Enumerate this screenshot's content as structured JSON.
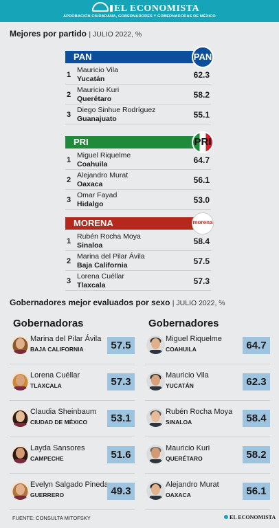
{
  "header": {
    "brand": "EL ECONOMISTA",
    "tagline": "APROBACIÓN CIUDADANA, GOBERNADORES Y GOBERNADORAS DE MÉXICO"
  },
  "section1": {
    "title": "Mejores por partido",
    "subtitle": "| JULIO 2022, %"
  },
  "chart_data": [
    {
      "type": "table",
      "title": "Mejores por partido",
      "subtitle": "JULIO 2022, %",
      "parties": [
        {
          "name": "PAN",
          "color": "#0b4f9c",
          "logo_text": "PAN",
          "rows": [
            {
              "rank": "1",
              "name": "Mauricio Vila",
              "state": "Yucatán",
              "value": "62.3"
            },
            {
              "rank": "2",
              "name": "Mauricio Kuri",
              "state": "Querétaro",
              "value": "58.2"
            },
            {
              "rank": "3",
              "name": "Diego Sinhue Rodríguez",
              "state": "Guanajuato",
              "value": "55.1"
            }
          ]
        },
        {
          "name": "PRI",
          "color": "#1e8a3a",
          "logo_text": "PRI",
          "rows": [
            {
              "rank": "1",
              "name": "Miguel Riquelme",
              "state": "Coahuila",
              "value": "64.7"
            },
            {
              "rank": "2",
              "name": "Alejandro Murat",
              "state": "Oaxaca",
              "value": "56.1"
            },
            {
              "rank": "3",
              "name": "Omar Fayad",
              "state": "Hidalgo",
              "value": "53.0"
            }
          ]
        },
        {
          "name": "MORENA",
          "color": "#b5281d",
          "logo_text": "morena",
          "rows": [
            {
              "rank": "1",
              "name": "Rubén Rocha Moya",
              "state": "Sinaloa",
              "value": "58.4"
            },
            {
              "rank": "2",
              "name": "Marina del Pilar Ávila",
              "state": "Baja California",
              "value": "57.5"
            },
            {
              "rank": "3",
              "name": "Lorena Cuéllar",
              "state": "Tlaxcala",
              "value": "57.3"
            }
          ]
        }
      ]
    },
    {
      "type": "table",
      "title": "Gobernadores mejor evaluados por sexo",
      "subtitle": "JULIO 2022, %",
      "columns": [
        {
          "title": "Gobernadoras",
          "rows": [
            {
              "name": "Marina del Pilar Ávila",
              "state": "BAJA CALIFORNIA",
              "value": "57.5"
            },
            {
              "name": "Lorena Cuéllar",
              "state": "TLAXCALA",
              "value": "57.3"
            },
            {
              "name": "Claudia Sheinbaum",
              "state": "CIUDAD DE MÉXICO",
              "value": "53.1"
            },
            {
              "name": "Layda Sansores",
              "state": "CAMPECHE",
              "value": "51.6"
            },
            {
              "name": "Evelyn Salgado Pineda",
              "state": "GUERRERO",
              "value": "49.3"
            }
          ]
        },
        {
          "title": "Gobernadores",
          "rows": [
            {
              "name": "Miguel Riquelme",
              "state": "COAHUILA",
              "value": "64.7"
            },
            {
              "name": "Mauricio Vila",
              "state": "YUCATÁN",
              "value": "62.3"
            },
            {
              "name": "Rubén Rocha Moya",
              "state": "SINALOA",
              "value": "58.4"
            },
            {
              "name": "Mauricio Kuri",
              "state": "QUERÉTARO",
              "value": "58.2"
            },
            {
              "name": "Alejandro Murat",
              "state": "OAXACA",
              "value": "56.1"
            }
          ]
        }
      ]
    }
  ],
  "section2": {
    "title": "Gobernadores mejor evaluados por sexo",
    "subtitle": "| JULIO 2022, %"
  },
  "footer": {
    "source": "FUENTE: CONSULTA MITOFSKY",
    "brand": "EL ECONOMISTA"
  }
}
